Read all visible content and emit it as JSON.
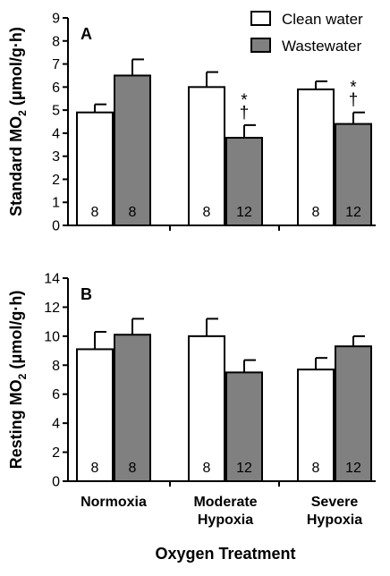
{
  "colors": {
    "clean": "#ffffff",
    "waste": "#808080",
    "stroke": "#000000"
  },
  "legend": {
    "clean_label": "Clean water",
    "waste_label": "Wastewater"
  },
  "xlabel": "Oxygen Treatment",
  "chart_data": [
    {
      "panel": "A",
      "type": "bar",
      "ylabel_main": "Standard MO",
      "ylabel_sub": "2",
      "ylabel_unit": "(μmol/g·h)",
      "ylim": [
        0,
        9
      ],
      "yticks": [
        "0",
        "1",
        "2",
        "3",
        "4",
        "5",
        "6",
        "7",
        "8",
        "9"
      ],
      "categories": [
        "Normoxia",
        "Moderate Hypoxia",
        "Severe Hypoxia"
      ],
      "series": [
        {
          "name": "Clean water",
          "values": [
            4.9,
            6.0,
            5.9
          ],
          "errors": [
            0.35,
            0.65,
            0.35
          ],
          "n": [
            "8",
            "8",
            "8"
          ],
          "marks": [
            "",
            "",
            ""
          ]
        },
        {
          "name": "Wastewater",
          "values": [
            6.5,
            3.8,
            4.4
          ],
          "errors": [
            0.7,
            0.55,
            0.5
          ],
          "n": [
            "8",
            "12",
            "12"
          ],
          "marks": [
            "",
            "*†",
            "*†"
          ]
        }
      ]
    },
    {
      "panel": "B",
      "type": "bar",
      "ylabel_main": "Resting MO",
      "ylabel_sub": "2",
      "ylabel_unit": "(μmol/g·h)",
      "ylim": [
        0,
        14
      ],
      "yticks": [
        "0",
        "2",
        "4",
        "6",
        "8",
        "10",
        "12",
        "14"
      ],
      "categories": [
        "Normoxia",
        "Moderate Hypoxia",
        "Severe Hypoxia"
      ],
      "series": [
        {
          "name": "Clean water",
          "values": [
            9.1,
            10.0,
            7.7
          ],
          "errors": [
            1.2,
            1.2,
            0.8
          ],
          "n": [
            "8",
            "8",
            "8"
          ],
          "marks": [
            "",
            "",
            ""
          ]
        },
        {
          "name": "Wastewater",
          "values": [
            10.1,
            7.5,
            9.3
          ],
          "errors": [
            1.1,
            0.85,
            0.7
          ],
          "n": [
            "8",
            "12",
            "12"
          ],
          "marks": [
            "",
            "",
            ""
          ]
        }
      ]
    }
  ],
  "category_lines": [
    [
      "Normoxia"
    ],
    [
      "Moderate",
      "Hypoxia"
    ],
    [
      "Severe",
      "Hypoxia"
    ]
  ]
}
